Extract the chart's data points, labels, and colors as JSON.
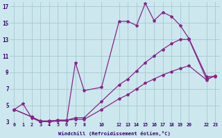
{
  "background_color": "#cce8ee",
  "grid_color": "#aaccd4",
  "line_color": "#882288",
  "xlabel": "Windchill (Refroidissement éolien,°C)",
  "xlim": [
    -0.5,
    23.5
  ],
  "ylim": [
    3,
    17.5
  ],
  "yticks": [
    3,
    5,
    7,
    9,
    11,
    13,
    15,
    17
  ],
  "xtick_positions": [
    0,
    1,
    2,
    3,
    4,
    5,
    6,
    7,
    8,
    10,
    12,
    13,
    14,
    15,
    16,
    17,
    18,
    19,
    20,
    22,
    23
  ],
  "xtick_labels": [
    "0",
    "1",
    "2",
    "3",
    "4",
    "5",
    "6",
    "7",
    "8",
    "10",
    "12",
    "13",
    "14",
    "15",
    "16",
    "17",
    "18",
    "19",
    "20",
    "22",
    "23"
  ],
  "series1_x": [
    0,
    1,
    2,
    3,
    4,
    5,
    6,
    7,
    8,
    10,
    12,
    13,
    14,
    15,
    16,
    17,
    18,
    19,
    20,
    22,
    23
  ],
  "series1_y": [
    4.5,
    5.2,
    3.5,
    3.0,
    3.0,
    3.1,
    3.1,
    10.2,
    6.8,
    7.2,
    15.2,
    15.2,
    14.7,
    17.4,
    15.3,
    16.3,
    15.8,
    14.7,
    13.1,
    8.5,
    8.5
  ],
  "series2_x": [
    0,
    2,
    3,
    4,
    5,
    6,
    7,
    8,
    10,
    12,
    13,
    14,
    15,
    16,
    17,
    18,
    19,
    20,
    22,
    23
  ],
  "series2_y": [
    4.5,
    3.6,
    3.1,
    3.1,
    3.2,
    3.2,
    3.5,
    3.5,
    5.5,
    7.5,
    8.2,
    9.2,
    10.2,
    11.0,
    11.8,
    12.5,
    13.0,
    13.0,
    8.2,
    8.6
  ],
  "series3_x": [
    0,
    2,
    3,
    4,
    5,
    6,
    7,
    8,
    10,
    12,
    13,
    14,
    15,
    16,
    17,
    18,
    19,
    20,
    22,
    23
  ],
  "series3_y": [
    4.5,
    3.6,
    3.1,
    3.1,
    3.2,
    3.2,
    3.3,
    3.3,
    4.5,
    5.8,
    6.3,
    7.0,
    7.7,
    8.2,
    8.7,
    9.1,
    9.5,
    9.8,
    8.1,
    8.6
  ]
}
